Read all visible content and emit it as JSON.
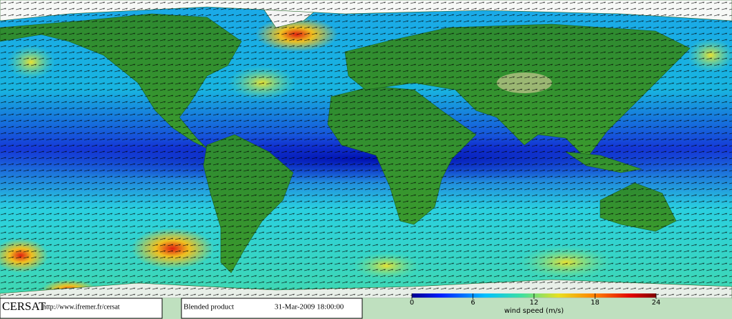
{
  "footer": {
    "logo": "CERSAT",
    "url": "http://www.ifremer.fr/cersat",
    "product": "Blended product",
    "timestamp": "31-Mar-2009 18:00:00"
  },
  "colorbar": {
    "label": "wind speed (m/s)",
    "range": [
      0,
      24
    ],
    "ticks": [
      0,
      6,
      12,
      18,
      24
    ]
  }
}
